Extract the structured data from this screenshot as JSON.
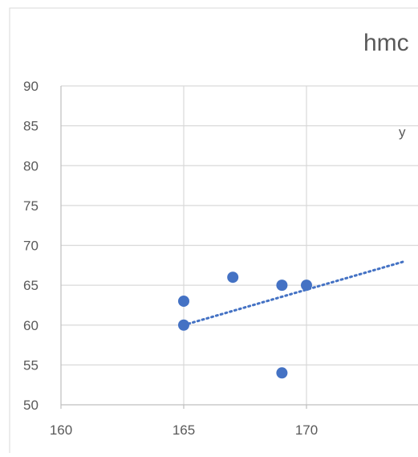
{
  "chart_data": {
    "type": "scatter",
    "title": "hmc",
    "trendline_label": "y",
    "xlim": [
      160,
      174
    ],
    "ylim": [
      50,
      90
    ],
    "x_ticks": [
      "160",
      "165",
      "170"
    ],
    "y_ticks": [
      "90",
      "85",
      "80",
      "75",
      "70",
      "65",
      "60",
      "55",
      "50"
    ],
    "grid": true,
    "points": [
      {
        "x": 165,
        "y": 63
      },
      {
        "x": 165,
        "y": 60
      },
      {
        "x": 167,
        "y": 66
      },
      {
        "x": 169,
        "y": 65
      },
      {
        "x": 169,
        "y": 54
      },
      {
        "x": 170,
        "y": 65
      }
    ],
    "trendline": {
      "type": "linear",
      "x_start": 165,
      "y_start": 60,
      "x_end": 174,
      "y_end": 68
    },
    "colors": {
      "marker": "#4472c4",
      "trendline": "#4472c4",
      "grid": "#d9d9d9",
      "axis": "#bfbfbf",
      "text": "#595959"
    }
  }
}
